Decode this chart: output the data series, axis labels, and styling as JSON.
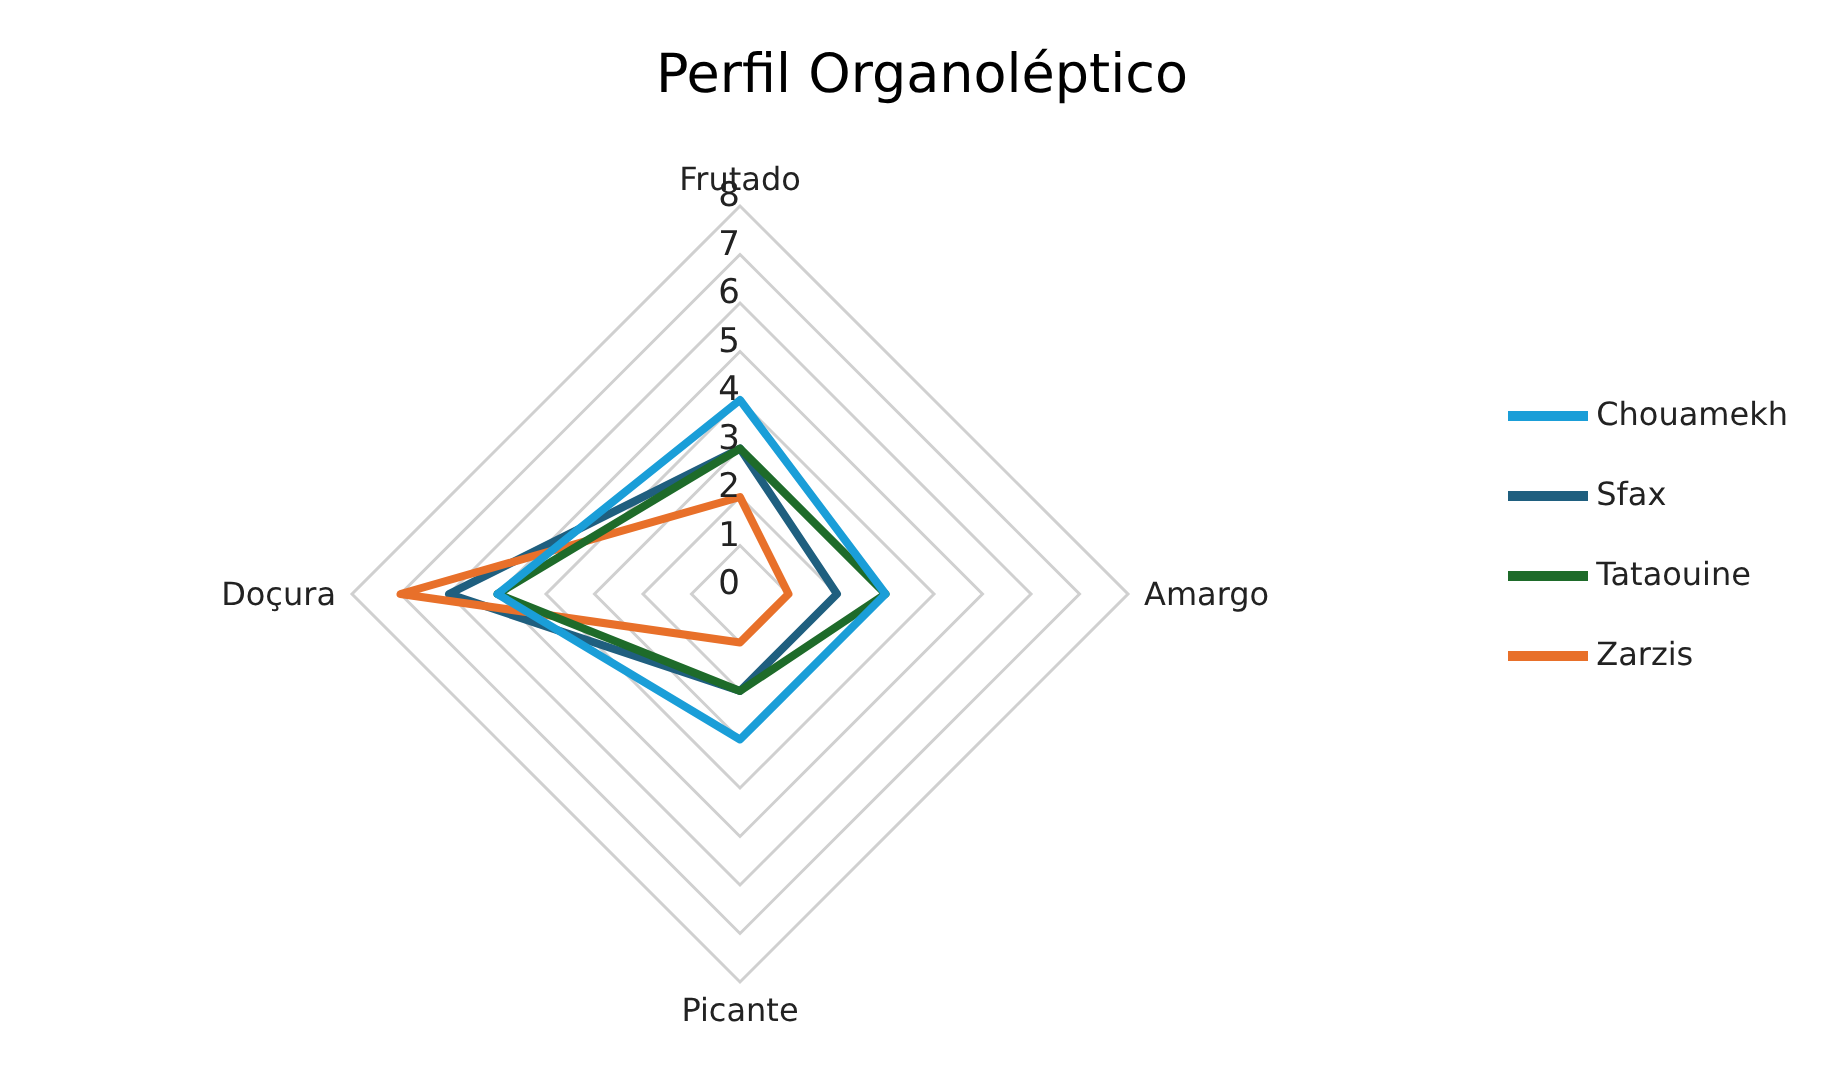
{
  "chart_data": {
    "type": "radar",
    "title": "Perfil Organoléptico",
    "categories": [
      "Frutado",
      "Amargo",
      "Picante",
      "Doçura"
    ],
    "series": [
      {
        "name": "Sfax",
        "color": "#1f5f7f",
        "values": [
          3,
          2,
          2,
          6
        ]
      },
      {
        "name": "Zarzis",
        "color": "#e8702a",
        "values": [
          2,
          1,
          1,
          7
        ]
      },
      {
        "name": "Tataouine",
        "color": "#1e6b2a",
        "values": [
          3,
          3,
          2,
          5
        ]
      },
      {
        "name": "Chouamekh",
        "color": "#1a9ed8",
        "values": [
          4,
          3,
          3,
          5
        ]
      }
    ],
    "ylim": [
      0,
      8
    ],
    "yticks": [
      0,
      1,
      2,
      3,
      4,
      5,
      6,
      7,
      8
    ],
    "grid": true,
    "legend": "right",
    "marker": "none"
  }
}
